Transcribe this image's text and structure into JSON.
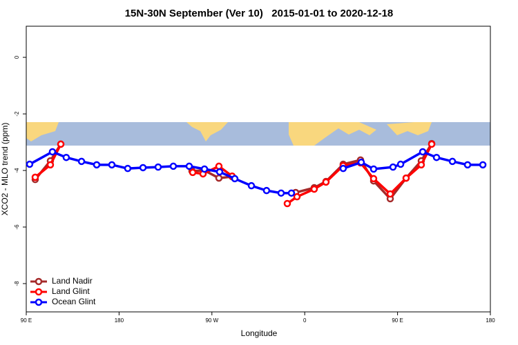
{
  "chart_data": {
    "type": "line",
    "title": "15N-30N September (Ver 10)   2015-01-01 to 2020-12-18",
    "x_label": "Longitude",
    "y_label": "XCO2 - MLO trend (ppm)",
    "xlim": [
      90,
      540
    ],
    "ylim": [
      -9.0,
      1.1
    ],
    "xticks": [
      {
        "value": 90,
        "label": "90 E"
      },
      180,
      {
        "value": 270,
        "label": "90 W"
      },
      {
        "value": 360,
        "label": "0"
      },
      {
        "value": 450,
        "label": "90 E"
      },
      {
        "value": 540,
        "label": "180"
      }
    ],
    "yticks": [
      0,
      -2,
      -4,
      -6,
      -8
    ],
    "legend": "bottom-left",
    "series": [
      {
        "name": "Land Nadir",
        "color": "#a52a2a",
        "x": [
          98.7,
          113.4,
          123.5,
          null,
          250.7,
          262.8,
          276.8,
          289.6,
          null,
          351.2,
          369.2,
          380.6,
          397.3,
          414.1,
          426.8,
          442.9,
          458.3,
          473.0,
          483.1
        ],
        "values": [
          -4.32,
          -3.66,
          -3.07,
          null,
          -4.02,
          -4.0,
          -4.27,
          -4.22,
          null,
          -4.78,
          -4.61,
          -4.39,
          -3.78,
          -3.63,
          -4.37,
          -5.0,
          -4.27,
          -3.66,
          -3.05
        ]
      },
      {
        "name": "Land Glint",
        "color": "#ff0000",
        "x": [
          98.7,
          113.4,
          123.5,
          null,
          251.4,
          261.4,
          276.8,
          289.6,
          null,
          343.1,
          352.5,
          369.2,
          380.6,
          397.3,
          414.1,
          426.8,
          442.9,
          458.3,
          473.0,
          483.1
        ],
        "values": [
          -4.24,
          -3.8,
          -3.07,
          null,
          -4.07,
          -4.12,
          -3.85,
          -4.2,
          null,
          -5.17,
          -4.93,
          -4.66,
          -4.41,
          -3.83,
          -3.73,
          -4.29,
          -4.83,
          -4.27,
          -3.8,
          -3.07
        ]
      },
      {
        "name": "Ocean Glint",
        "color": "#0000ff",
        "x": [
          93.3,
          115.4,
          128.8,
          143.6,
          158.3,
          173.0,
          188.4,
          203.2,
          217.9,
          232.6,
          248.0,
          262.8,
          277.5,
          292.2,
          308.3,
          323.0,
          337.1,
          347.1,
          null,
          397.3,
          414.8,
          426.8,
          445.6,
          453.0,
          474.4,
          487.8,
          503.2,
          517.9,
          532.7
        ],
        "values": [
          -3.78,
          -3.34,
          -3.54,
          -3.68,
          -3.8,
          -3.8,
          -3.93,
          -3.9,
          -3.88,
          -3.85,
          -3.85,
          -3.95,
          -4.05,
          -4.29,
          -4.54,
          -4.71,
          -4.8,
          -4.8,
          null,
          -3.93,
          -3.71,
          -3.95,
          -3.88,
          -3.78,
          -3.34,
          -3.54,
          -3.68,
          -3.8,
          -3.8
        ]
      }
    ]
  }
}
